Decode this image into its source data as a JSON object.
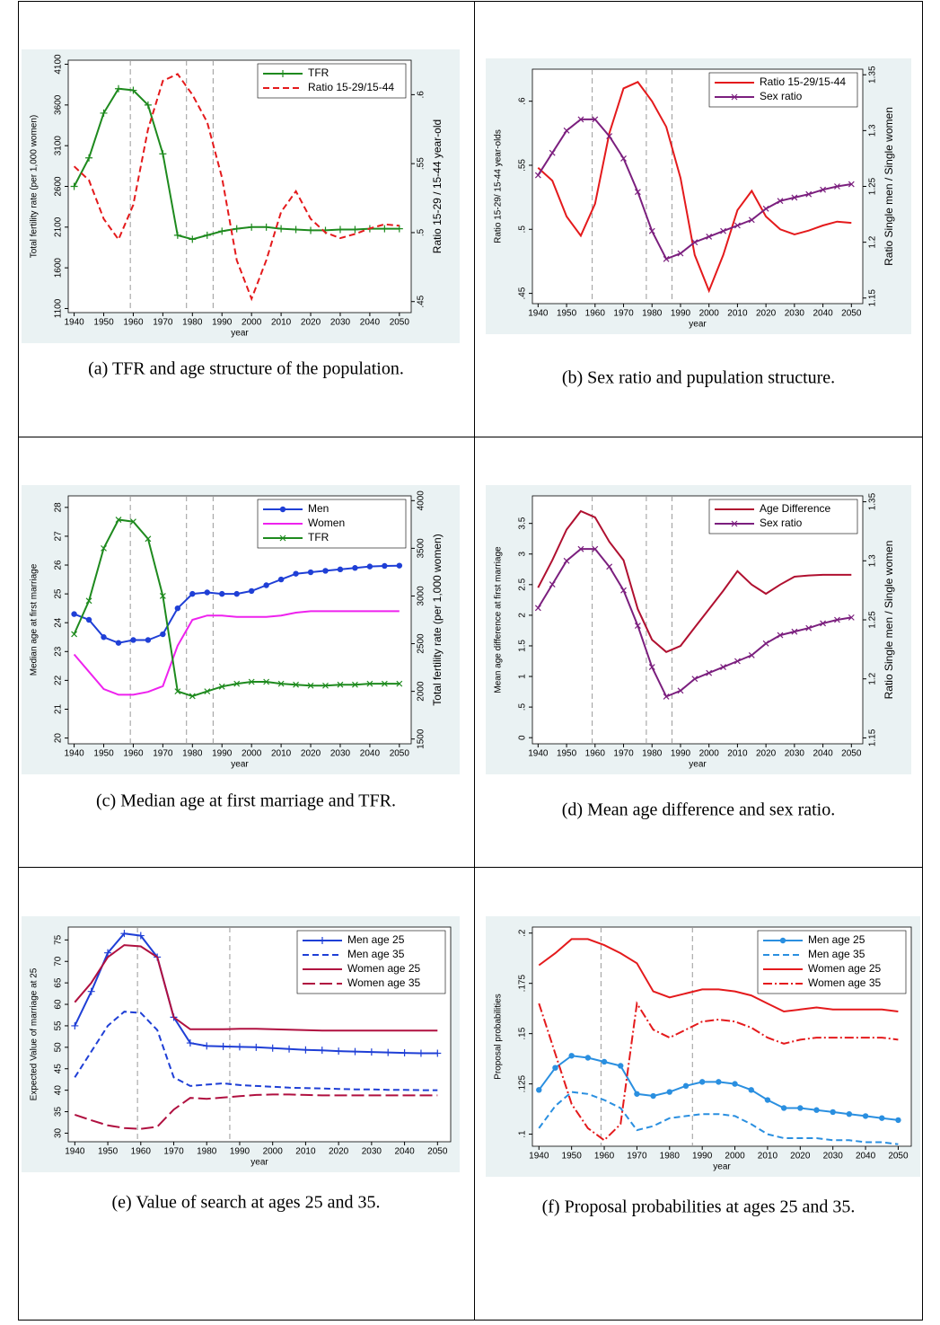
{
  "chart_data": [
    {
      "type": "line",
      "caption": "(a) TFR and age structure of the population.",
      "x_label": "year",
      "y_label": "Total fertility rate (per 1,000 women)",
      "y2_label": "Ratio 15-29 / 15-44 year-old",
      "background": "#eaf2f3",
      "legend": "top-right",
      "x": [
        1940,
        1945,
        1950,
        1955,
        1960,
        1965,
        1970,
        1975,
        1980,
        1985,
        1990,
        1995,
        2000,
        2005,
        2010,
        2015,
        2020,
        2025,
        2030,
        2035,
        2040,
        2045,
        2050
      ],
      "xlim": [
        1938,
        2054
      ],
      "xticks": [
        1940,
        1950,
        1960,
        1970,
        1980,
        1990,
        2000,
        2010,
        2020,
        2030,
        2040,
        2050
      ],
      "ylim": [
        1050,
        4150
      ],
      "yticks": [
        1100,
        1600,
        2100,
        2600,
        3100,
        3600,
        4100
      ],
      "y2lim": [
        0.442,
        0.625
      ],
      "y2ticks": [
        {
          "value": 0.45,
          "label": ".45"
        },
        {
          "value": 0.5,
          "label": ".5"
        },
        {
          "value": 0.55,
          "label": ".55"
        },
        {
          "value": 0.6,
          "label": ".6"
        }
      ],
      "reference_lines": [
        1959,
        1978,
        1987
      ],
      "series": [
        {
          "name": "TFR",
          "color": "#1e8a1e",
          "dash": "solid",
          "marker": "plus",
          "values": [
            2600,
            2950,
            3500,
            3800,
            3780,
            3600,
            3000,
            2000,
            1950,
            2000,
            2050,
            2080,
            2100,
            2100,
            2080,
            2070,
            2060,
            2060,
            2070,
            2070,
            2080,
            2080,
            2080
          ]
        },
        {
          "name": "Ratio 15-29/15-44",
          "color": "#e41a1c",
          "dash": "dashed",
          "marker": "none",
          "axis": "y2",
          "values": [
            0.548,
            0.538,
            0.51,
            0.495,
            0.52,
            0.575,
            0.61,
            0.615,
            0.6,
            0.58,
            0.54,
            0.48,
            0.452,
            0.48,
            0.515,
            0.53,
            0.51,
            0.5,
            0.496,
            0.499,
            0.503,
            0.506,
            0.505
          ]
        }
      ]
    },
    {
      "type": "line",
      "caption": "(b) Sex ratio and pupulation structure.",
      "x_label": "year",
      "y_label": "Ratio 15-29/ 15-44 year-olds",
      "y2_label": "Ratio Single men / Single women",
      "background": "#eaf2f3",
      "legend": "top-right",
      "x": [
        1940,
        1945,
        1950,
        1955,
        1960,
        1965,
        1970,
        1975,
        1980,
        1985,
        1990,
        1995,
        2000,
        2005,
        2010,
        2015,
        2020,
        2025,
        2030,
        2035,
        2040,
        2045,
        2050
      ],
      "xlim": [
        1938,
        2054
      ],
      "xticks": [
        1940,
        1950,
        1960,
        1970,
        1980,
        1990,
        2000,
        2010,
        2020,
        2030,
        2040,
        2050
      ],
      "ylim": [
        0.442,
        0.625
      ],
      "yticks": [
        {
          "value": 0.45,
          "label": ".45"
        },
        {
          "value": 0.5,
          "label": ".5"
        },
        {
          "value": 0.55,
          "label": ".55"
        },
        {
          "value": 0.6,
          "label": ".6"
        }
      ],
      "y2lim": [
        1.145,
        1.355
      ],
      "y2ticks": [
        1.15,
        1.2,
        1.25,
        1.3,
        1.35
      ],
      "reference_lines": [
        1959,
        1978,
        1987
      ],
      "series": [
        {
          "name": "Ratio 15-29/15-44",
          "color": "#e41a1c",
          "dash": "solid",
          "marker": "none",
          "values": [
            0.548,
            0.538,
            0.51,
            0.495,
            0.52,
            0.575,
            0.61,
            0.615,
            0.6,
            0.58,
            0.54,
            0.48,
            0.452,
            0.48,
            0.515,
            0.53,
            0.51,
            0.5,
            0.496,
            0.499,
            0.503,
            0.506,
            0.505
          ]
        },
        {
          "name": "Sex ratio",
          "color": "#7b1f7e",
          "dash": "solid",
          "marker": "x",
          "axis": "y2",
          "values": [
            1.26,
            1.28,
            1.3,
            1.31,
            1.31,
            1.295,
            1.275,
            1.245,
            1.21,
            1.185,
            1.19,
            1.2,
            1.205,
            1.21,
            1.215,
            1.22,
            1.23,
            1.237,
            1.24,
            1.243,
            1.247,
            1.25,
            1.252
          ]
        }
      ]
    },
    {
      "type": "line",
      "caption": "(c) Median age at first marriage and TFR.",
      "x_label": "year",
      "y_label": "Median age at first marriage",
      "y2_label": "Total fertility rate (per 1,000 women)",
      "background": "#eaf2f3",
      "legend": "top-right",
      "x": [
        1940,
        1945,
        1950,
        1955,
        1960,
        1965,
        1970,
        1975,
        1980,
        1985,
        1990,
        1995,
        2000,
        2005,
        2010,
        2015,
        2020,
        2025,
        2030,
        2035,
        2040,
        2045,
        2050
      ],
      "xlim": [
        1938,
        2054
      ],
      "xticks": [
        1940,
        1950,
        1960,
        1970,
        1980,
        1990,
        2000,
        2010,
        2020,
        2030,
        2040,
        2050
      ],
      "ylim": [
        19.8,
        28.4
      ],
      "yticks": [
        20,
        21,
        22,
        23,
        24,
        25,
        26,
        27,
        28
      ],
      "y2lim": [
        1450,
        4050
      ],
      "y2ticks": [
        1500,
        2000,
        2500,
        3000,
        3500,
        4000
      ],
      "reference_lines": [
        1959,
        1978,
        1987
      ],
      "series": [
        {
          "name": "Men",
          "color": "#1f3fd6",
          "dash": "solid",
          "marker": "circle",
          "values": [
            24.3,
            24.1,
            23.5,
            23.3,
            23.4,
            23.4,
            23.6,
            24.5,
            25,
            25.05,
            25,
            25,
            25.1,
            25.3,
            25.5,
            25.7,
            25.75,
            25.8,
            25.85,
            25.9,
            25.95,
            25.97,
            25.98
          ]
        },
        {
          "name": "Women",
          "color": "#ee22ee",
          "dash": "solid",
          "marker": "none",
          "values": [
            22.9,
            22.3,
            21.7,
            21.5,
            21.5,
            21.6,
            21.8,
            23.2,
            24.1,
            24.25,
            24.25,
            24.2,
            24.2,
            24.2,
            24.25,
            24.35,
            24.4,
            24.4,
            24.4,
            24.4,
            24.4,
            24.4,
            24.4
          ]
        },
        {
          "name": "TFR",
          "color": "#1e8a1e",
          "dash": "solid",
          "marker": "x",
          "axis": "y2",
          "values": [
            2600,
            2950,
            3500,
            3800,
            3780,
            3600,
            3000,
            2000,
            1950,
            2000,
            2050,
            2080,
            2100,
            2100,
            2080,
            2070,
            2060,
            2060,
            2070,
            2070,
            2080,
            2080,
            2080
          ]
        }
      ]
    },
    {
      "type": "line",
      "caption": "(d) Mean age difference and sex ratio.",
      "x_label": "year",
      "y_label": "Mean age difference at first marriage",
      "y2_label": "Ratio Single men / Single women",
      "background": "#eaf2f3",
      "legend": "top-right",
      "x": [
        1940,
        1945,
        1950,
        1955,
        1960,
        1965,
        1970,
        1975,
        1980,
        1985,
        1990,
        1995,
        2000,
        2005,
        2010,
        2015,
        2020,
        2025,
        2030,
        2035,
        2040,
        2045,
        2050
      ],
      "xlim": [
        1938,
        2054
      ],
      "xticks": [
        1940,
        1950,
        1960,
        1970,
        1980,
        1990,
        2000,
        2010,
        2020,
        2030,
        2040,
        2050
      ],
      "ylim": [
        -0.1,
        3.95
      ],
      "yticks": [
        0,
        {
          "value": 0.5,
          "label": ".5"
        },
        1,
        1.5,
        2,
        2.5,
        3,
        3.5
      ],
      "y2lim": [
        1.145,
        1.355
      ],
      "y2ticks": [
        1.15,
        1.2,
        1.25,
        1.3,
        1.35
      ],
      "reference_lines": [
        1959,
        1978,
        1987
      ],
      "series": [
        {
          "name": "Age Difference",
          "color": "#b01030",
          "dash": "solid",
          "marker": "none",
          "values": [
            2.45,
            2.9,
            3.4,
            3.7,
            3.6,
            3.2,
            2.9,
            2.1,
            1.6,
            1.4,
            1.5,
            1.8,
            2.1,
            2.4,
            2.72,
            2.5,
            2.35,
            2.5,
            2.63,
            2.65,
            2.66,
            2.66,
            2.66
          ]
        },
        {
          "name": "Sex ratio",
          "color": "#7b1f7e",
          "dash": "solid",
          "marker": "x",
          "axis": "y2",
          "values": [
            1.26,
            1.28,
            1.3,
            1.31,
            1.31,
            1.295,
            1.275,
            1.245,
            1.21,
            1.185,
            1.19,
            1.2,
            1.205,
            1.21,
            1.215,
            1.22,
            1.23,
            1.237,
            1.24,
            1.243,
            1.247,
            1.25,
            1.252
          ]
        }
      ]
    },
    {
      "type": "line",
      "caption": "(e) Value of search at ages 25 and 35.",
      "x_label": "year",
      "y_label": "Expected Value of marriage at 25",
      "background": "#eaf2f3",
      "legend": "top-right",
      "x": [
        1940,
        1945,
        1950,
        1955,
        1960,
        1965,
        1970,
        1975,
        1980,
        1985,
        1990,
        1995,
        2000,
        2005,
        2010,
        2015,
        2020,
        2025,
        2030,
        2035,
        2040,
        2045,
        2050
      ],
      "xlim": [
        1938,
        2054
      ],
      "xticks": [
        1940,
        1950,
        1960,
        1970,
        1980,
        1990,
        2000,
        2010,
        2020,
        2030,
        2040,
        2050
      ],
      "ylim": [
        28,
        78
      ],
      "yticks": [
        30,
        35,
        40,
        45,
        50,
        55,
        60,
        65,
        70,
        75
      ],
      "reference_lines": [
        1959,
        1987
      ],
      "series": [
        {
          "name": "Men age 25",
          "color": "#1f3fd6",
          "dash": "solid",
          "marker": "plus",
          "values": [
            55,
            63,
            72,
            76.5,
            76,
            71,
            57,
            51,
            50.3,
            50.2,
            50.1,
            50,
            49.8,
            49.6,
            49.4,
            49.3,
            49.1,
            49,
            48.9,
            48.8,
            48.7,
            48.6,
            48.6
          ]
        },
        {
          "name": "Men age 35",
          "color": "#1f3fd6",
          "dash": "dashed",
          "marker": "none",
          "values": [
            43,
            49,
            55,
            58.3,
            58,
            54,
            43,
            41,
            41.3,
            41.6,
            41.2,
            41,
            40.8,
            40.6,
            40.5,
            40.4,
            40.3,
            40.2,
            40.2,
            40.1,
            40.1,
            40,
            40
          ]
        },
        {
          "name": "Women age 25",
          "color": "#b01040",
          "dash": "solid",
          "marker": "none",
          "values": [
            60.5,
            65,
            71,
            73.8,
            73.5,
            71,
            57,
            54.2,
            54.2,
            54.2,
            54.3,
            54.3,
            54.2,
            54.1,
            54,
            53.9,
            53.9,
            53.9,
            53.9,
            53.9,
            53.9,
            53.9,
            53.9
          ]
        },
        {
          "name": "Women age 35",
          "color": "#b01040",
          "dash": "longdash",
          "marker": "none",
          "values": [
            34.3,
            33,
            31.8,
            31.2,
            31,
            31.5,
            35.5,
            38.2,
            38,
            38.3,
            38.6,
            38.9,
            39,
            39,
            38.9,
            38.8,
            38.8,
            38.8,
            38.8,
            38.8,
            38.8,
            38.8,
            38.8
          ]
        }
      ]
    },
    {
      "type": "line",
      "caption": "(f) Proposal probabilities at ages 25 and 35.",
      "x_label": "year",
      "y_label": "Proposal probabilities",
      "background": "#eaf2f3",
      "legend": "top-right",
      "x": [
        1940,
        1945,
        1950,
        1955,
        1960,
        1965,
        1970,
        1975,
        1980,
        1985,
        1990,
        1995,
        2000,
        2005,
        2010,
        2015,
        2020,
        2025,
        2030,
        2035,
        2040,
        2045,
        2050
      ],
      "xlim": [
        1938,
        2054
      ],
      "xticks": [
        1940,
        1950,
        1960,
        1970,
        1980,
        1990,
        2000,
        2010,
        2020,
        2030,
        2040,
        2050
      ],
      "ylim": [
        0.094,
        0.203
      ],
      "yticks": [
        {
          "value": 0.1,
          "label": ".1"
        },
        {
          "value": 0.125,
          "label": ".125"
        },
        {
          "value": 0.15,
          "label": ".15"
        },
        {
          "value": 0.175,
          "label": ".175"
        },
        {
          "value": 0.2,
          "label": ".2"
        }
      ],
      "reference_lines": [
        1959,
        1987
      ],
      "series": [
        {
          "name": "Men age 25",
          "color": "#2a8fe0",
          "dash": "solid",
          "marker": "circle",
          "values": [
            0.122,
            0.133,
            0.139,
            0.138,
            0.136,
            0.134,
            0.12,
            0.119,
            0.121,
            0.124,
            0.126,
            0.126,
            0.125,
            0.122,
            0.117,
            0.113,
            0.113,
            0.112,
            0.111,
            0.11,
            0.109,
            0.108,
            0.107
          ]
        },
        {
          "name": "Men age 35",
          "color": "#2a8fe0",
          "dash": "dashed",
          "marker": "none",
          "values": [
            0.103,
            0.114,
            0.121,
            0.12,
            0.117,
            0.113,
            0.102,
            0.104,
            0.108,
            0.109,
            0.11,
            0.11,
            0.109,
            0.105,
            0.1,
            0.098,
            0.098,
            0.098,
            0.097,
            0.097,
            0.096,
            0.096,
            0.095
          ]
        },
        {
          "name": "Women age 25",
          "color": "#e41a1c",
          "dash": "solid",
          "marker": "none",
          "values": [
            0.184,
            0.19,
            0.197,
            0.197,
            0.194,
            0.19,
            0.185,
            0.171,
            0.168,
            0.17,
            0.172,
            0.172,
            0.171,
            0.169,
            0.165,
            0.161,
            0.162,
            0.163,
            0.162,
            0.162,
            0.162,
            0.162,
            0.161
          ]
        },
        {
          "name": "Women age 35",
          "color": "#e41a1c",
          "dash": "dashdot",
          "marker": "none",
          "values": [
            0.165,
            0.14,
            0.115,
            0.103,
            0.097,
            0.105,
            0.165,
            0.152,
            0.148,
            0.152,
            0.156,
            0.157,
            0.156,
            0.153,
            0.148,
            0.145,
            0.147,
            0.148,
            0.148,
            0.148,
            0.148,
            0.148,
            0.147
          ]
        }
      ]
    }
  ]
}
